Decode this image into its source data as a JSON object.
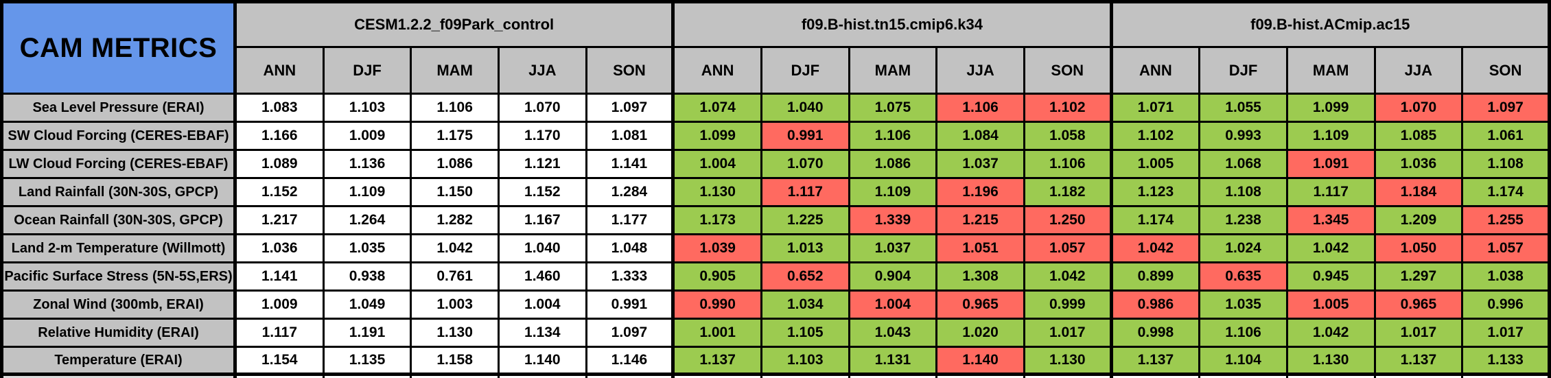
{
  "chart_data": {
    "type": "table",
    "title": "CAM METRICS",
    "title_bg": "#6596EA",
    "header_bg": "#C2C2C2",
    "grid_color": "#000000",
    "cell_colors": {
      "white": "#FFFFFF",
      "green": "#9CCB50",
      "red": "#FF6A60"
    },
    "column_groups": [
      {
        "name": "CESM1.2.2_f09Park_control"
      },
      {
        "name": "f09.B-hist.tn15.cmip6.k34"
      },
      {
        "name": "f09.B-hist.ACmip.ac15"
      }
    ],
    "season_columns": [
      "ANN",
      "DJF",
      "MAM",
      "JJA",
      "SON"
    ],
    "rows": [
      {
        "label": "Sea Level Pressure (ERAI)",
        "groups": [
          {
            "values": [
              "1.083",
              "1.103",
              "1.106",
              "1.070",
              "1.097"
            ],
            "colors": [
              "white",
              "white",
              "white",
              "white",
              "white"
            ]
          },
          {
            "values": [
              "1.074",
              "1.040",
              "1.075",
              "1.106",
              "1.102"
            ],
            "colors": [
              "green",
              "green",
              "green",
              "red",
              "red"
            ]
          },
          {
            "values": [
              "1.071",
              "1.055",
              "1.099",
              "1.070",
              "1.097"
            ],
            "colors": [
              "green",
              "green",
              "green",
              "red",
              "red"
            ]
          }
        ]
      },
      {
        "label": "SW Cloud Forcing (CERES-EBAF)",
        "groups": [
          {
            "values": [
              "1.166",
              "1.009",
              "1.175",
              "1.170",
              "1.081"
            ],
            "colors": [
              "white",
              "white",
              "white",
              "white",
              "white"
            ]
          },
          {
            "values": [
              "1.099",
              "0.991",
              "1.106",
              "1.084",
              "1.058"
            ],
            "colors": [
              "green",
              "red",
              "green",
              "green",
              "green"
            ]
          },
          {
            "values": [
              "1.102",
              "0.993",
              "1.109",
              "1.085",
              "1.061"
            ],
            "colors": [
              "green",
              "green",
              "green",
              "green",
              "green"
            ]
          }
        ]
      },
      {
        "label": "LW Cloud Forcing (CERES-EBAF)",
        "groups": [
          {
            "values": [
              "1.089",
              "1.136",
              "1.086",
              "1.121",
              "1.141"
            ],
            "colors": [
              "white",
              "white",
              "white",
              "white",
              "white"
            ]
          },
          {
            "values": [
              "1.004",
              "1.070",
              "1.086",
              "1.037",
              "1.106"
            ],
            "colors": [
              "green",
              "green",
              "green",
              "green",
              "green"
            ]
          },
          {
            "values": [
              "1.005",
              "1.068",
              "1.091",
              "1.036",
              "1.108"
            ],
            "colors": [
              "green",
              "green",
              "red",
              "green",
              "green"
            ]
          }
        ]
      },
      {
        "label": "Land Rainfall (30N-30S, GPCP)",
        "groups": [
          {
            "values": [
              "1.152",
              "1.109",
              "1.150",
              "1.152",
              "1.284"
            ],
            "colors": [
              "white",
              "white",
              "white",
              "white",
              "white"
            ]
          },
          {
            "values": [
              "1.130",
              "1.117",
              "1.109",
              "1.196",
              "1.182"
            ],
            "colors": [
              "green",
              "red",
              "green",
              "red",
              "green"
            ]
          },
          {
            "values": [
              "1.123",
              "1.108",
              "1.117",
              "1.184",
              "1.174"
            ],
            "colors": [
              "green",
              "green",
              "green",
              "red",
              "green"
            ]
          }
        ]
      },
      {
        "label": "Ocean Rainfall (30N-30S, GPCP)",
        "groups": [
          {
            "values": [
              "1.217",
              "1.264",
              "1.282",
              "1.167",
              "1.177"
            ],
            "colors": [
              "white",
              "white",
              "white",
              "white",
              "white"
            ]
          },
          {
            "values": [
              "1.173",
              "1.225",
              "1.339",
              "1.215",
              "1.250"
            ],
            "colors": [
              "green",
              "green",
              "red",
              "red",
              "red"
            ]
          },
          {
            "values": [
              "1.174",
              "1.238",
              "1.345",
              "1.209",
              "1.255"
            ],
            "colors": [
              "green",
              "green",
              "red",
              "green",
              "red"
            ]
          }
        ]
      },
      {
        "label": "Land 2-m Temperature (Willmott)",
        "groups": [
          {
            "values": [
              "1.036",
              "1.035",
              "1.042",
              "1.040",
              "1.048"
            ],
            "colors": [
              "white",
              "white",
              "white",
              "white",
              "white"
            ]
          },
          {
            "values": [
              "1.039",
              "1.013",
              "1.037",
              "1.051",
              "1.057"
            ],
            "colors": [
              "red",
              "green",
              "green",
              "red",
              "red"
            ]
          },
          {
            "values": [
              "1.042",
              "1.024",
              "1.042",
              "1.050",
              "1.057"
            ],
            "colors": [
              "red",
              "green",
              "green",
              "red",
              "red"
            ]
          }
        ]
      },
      {
        "label": "Pacific Surface Stress (5N-5S,ERS)",
        "groups": [
          {
            "values": [
              "1.141",
              "0.938",
              "0.761",
              "1.460",
              "1.333"
            ],
            "colors": [
              "white",
              "white",
              "white",
              "white",
              "white"
            ]
          },
          {
            "values": [
              "0.905",
              "0.652",
              "0.904",
              "1.308",
              "1.042"
            ],
            "colors": [
              "green",
              "red",
              "green",
              "green",
              "green"
            ]
          },
          {
            "values": [
              "0.899",
              "0.635",
              "0.945",
              "1.297",
              "1.038"
            ],
            "colors": [
              "green",
              "red",
              "green",
              "green",
              "green"
            ]
          }
        ]
      },
      {
        "label": "Zonal Wind (300mb, ERAI)",
        "groups": [
          {
            "values": [
              "1.009",
              "1.049",
              "1.003",
              "1.004",
              "0.991"
            ],
            "colors": [
              "white",
              "white",
              "white",
              "white",
              "white"
            ]
          },
          {
            "values": [
              "0.990",
              "1.034",
              "1.004",
              "0.965",
              "0.999"
            ],
            "colors": [
              "red",
              "green",
              "red",
              "red",
              "green"
            ]
          },
          {
            "values": [
              "0.986",
              "1.035",
              "1.005",
              "0.965",
              "0.996"
            ],
            "colors": [
              "red",
              "green",
              "red",
              "red",
              "green"
            ]
          }
        ]
      },
      {
        "label": "Relative Humidity (ERAI)",
        "groups": [
          {
            "values": [
              "1.117",
              "1.191",
              "1.130",
              "1.134",
              "1.097"
            ],
            "colors": [
              "white",
              "white",
              "white",
              "white",
              "white"
            ]
          },
          {
            "values": [
              "1.001",
              "1.105",
              "1.043",
              "1.020",
              "1.017"
            ],
            "colors": [
              "green",
              "green",
              "green",
              "green",
              "green"
            ]
          },
          {
            "values": [
              "0.998",
              "1.106",
              "1.042",
              "1.017",
              "1.017"
            ],
            "colors": [
              "green",
              "green",
              "green",
              "green",
              "green"
            ]
          }
        ]
      },
      {
        "label": "Temperature (ERAI)",
        "groups": [
          {
            "values": [
              "1.154",
              "1.135",
              "1.158",
              "1.140",
              "1.146"
            ],
            "colors": [
              "white",
              "white",
              "white",
              "white",
              "white"
            ]
          },
          {
            "values": [
              "1.137",
              "1.103",
              "1.131",
              "1.140",
              "1.130"
            ],
            "colors": [
              "green",
              "green",
              "green",
              "red",
              "green"
            ]
          },
          {
            "values": [
              "1.137",
              "1.104",
              "1.130",
              "1.137",
              "1.133"
            ],
            "colors": [
              "green",
              "green",
              "green",
              "green",
              "green"
            ]
          }
        ]
      }
    ]
  }
}
